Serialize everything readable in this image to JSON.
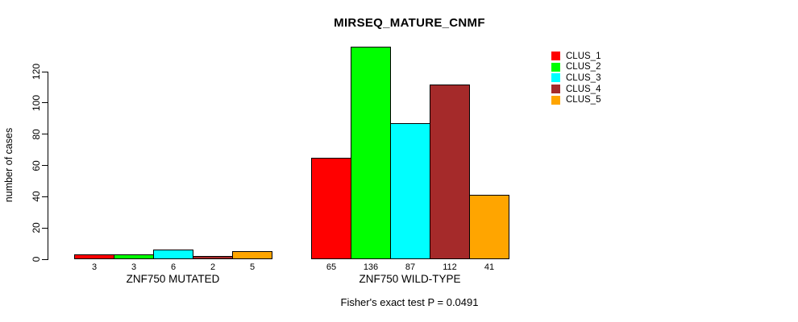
{
  "chart_data": {
    "type": "bar",
    "title": "MIRSEQ_MATURE_CNMF",
    "ylabel": "number of cases",
    "footnote": "Fisher's exact test P = 0.0491",
    "yticks": [
      0,
      20,
      40,
      60,
      80,
      100,
      120
    ],
    "ylim": [
      0,
      137
    ],
    "grid": false,
    "legend_position": "top-right",
    "bar_value_labels": true,
    "categories": [
      "ZNF750 MUTATED",
      "ZNF750 WILD-TYPE"
    ],
    "series": [
      {
        "name": "CLUS_1",
        "color": "#FF0000",
        "values": [
          3,
          65
        ]
      },
      {
        "name": "CLUS_2",
        "color": "#00FF00",
        "values": [
          3,
          136
        ]
      },
      {
        "name": "CLUS_3",
        "color": "#00FFFF",
        "values": [
          6,
          87
        ]
      },
      {
        "name": "CLUS_4",
        "color": "#A52A2A",
        "values": [
          2,
          112
        ]
      },
      {
        "name": "CLUS_5",
        "color": "#FFA500",
        "values": [
          5,
          41
        ]
      }
    ]
  }
}
